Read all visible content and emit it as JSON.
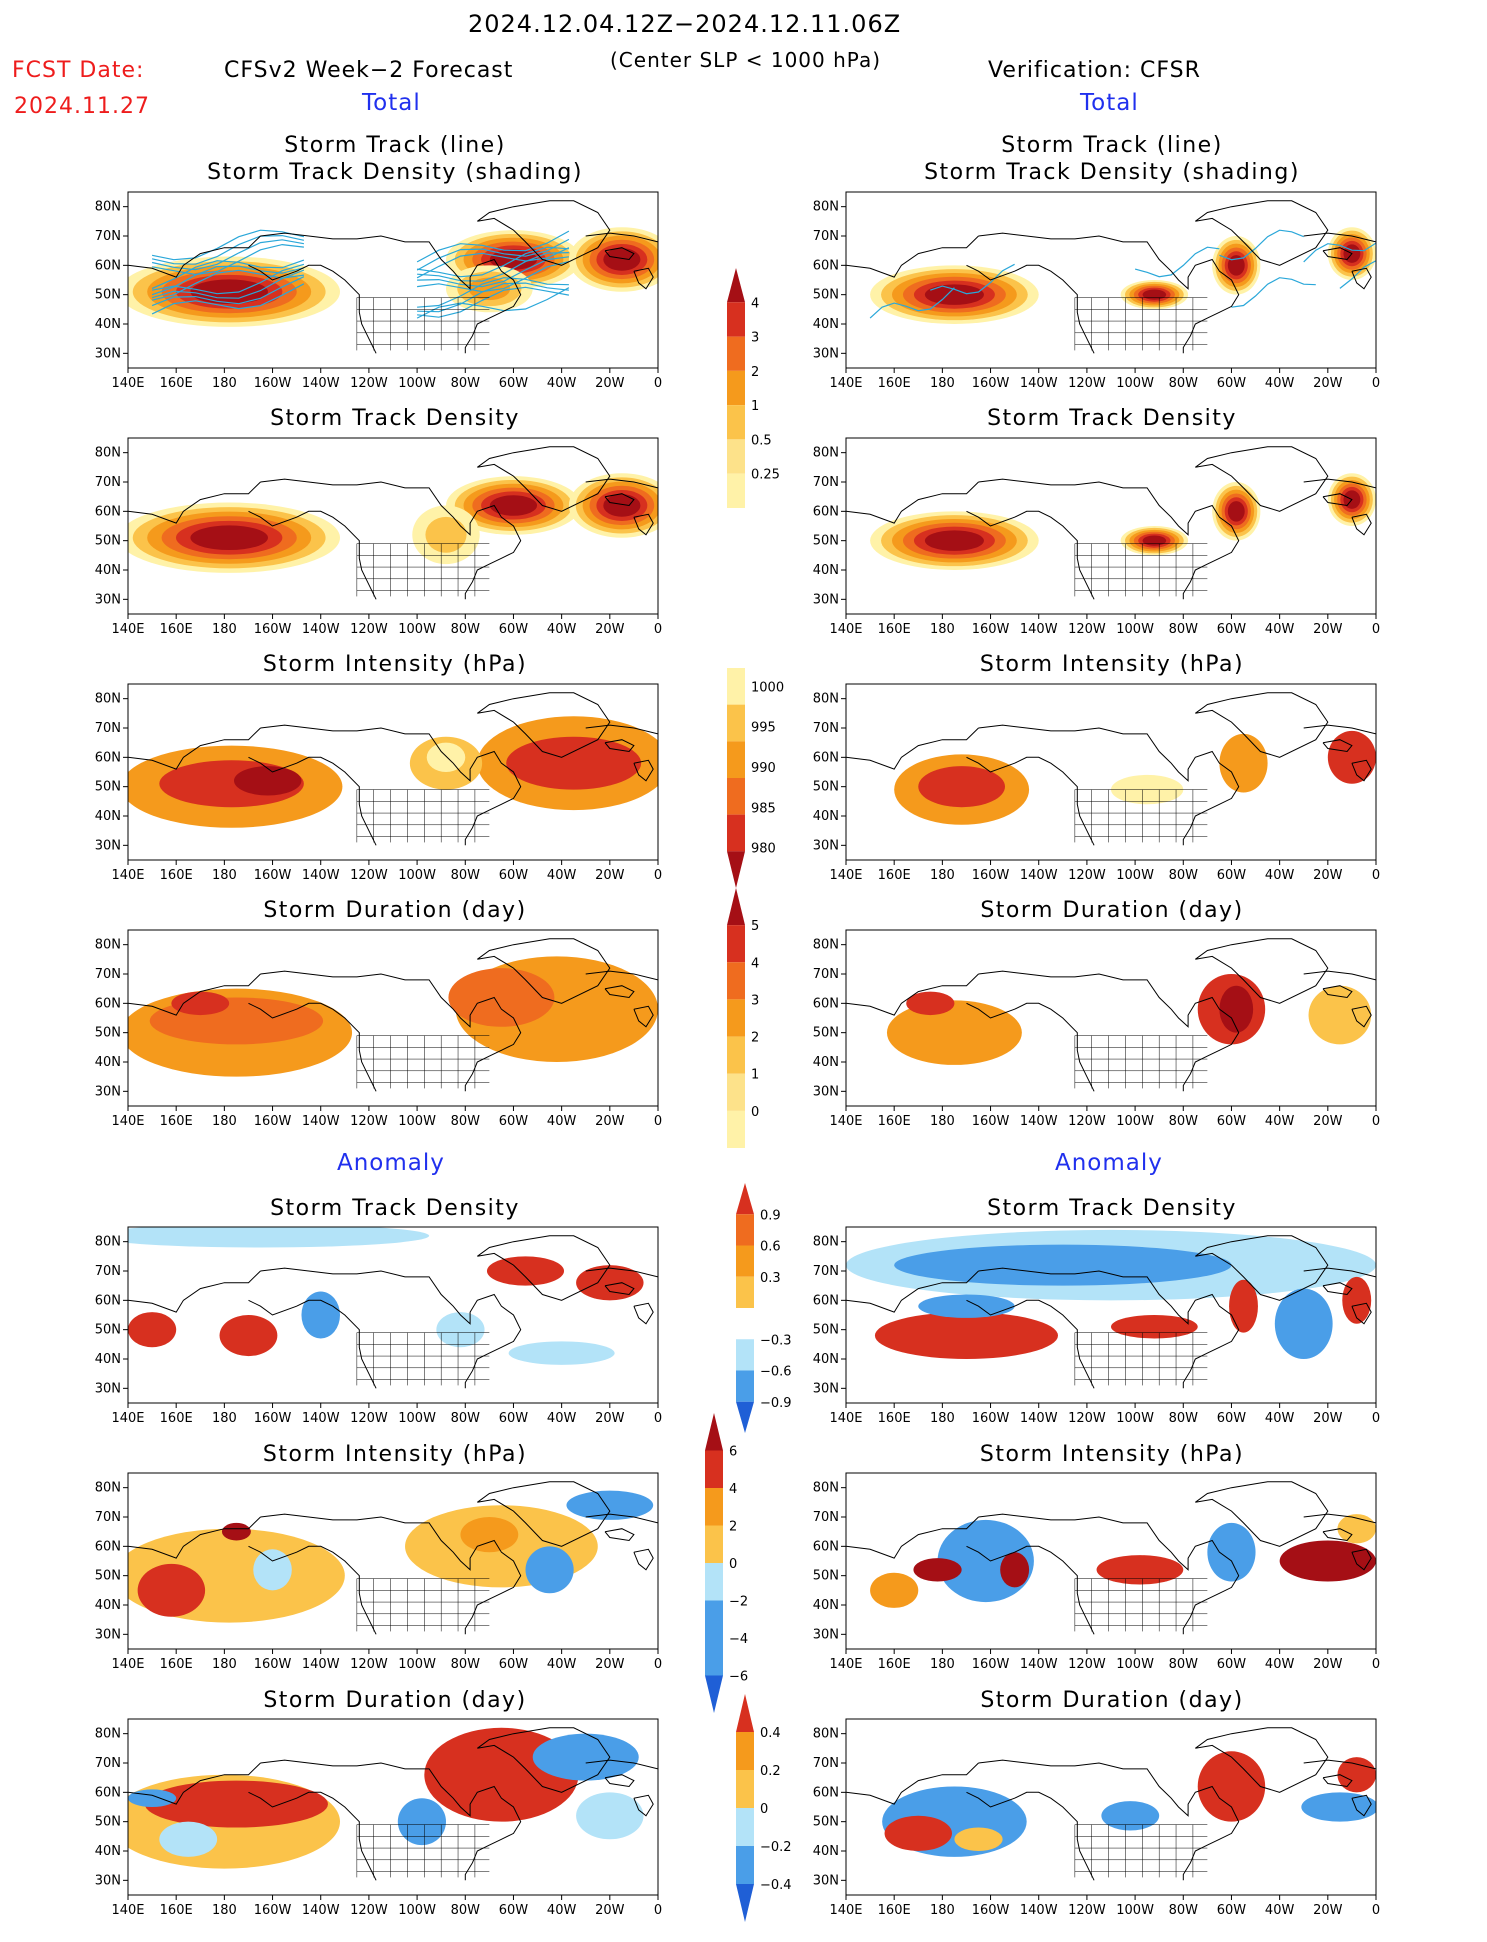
{
  "header": {
    "date_range": "2024.12.04.12Z−2024.12.11.06Z",
    "subtitle": "(Center SLP < 1000 hPa)",
    "fcst_label": "FCST Date:",
    "fcst_date": "2024.11.27",
    "left_title": "CFSv2 Week−2 Forecast",
    "right_title": "Verification: CFSR",
    "total_label": "Total",
    "anomaly_label": "Anomaly"
  },
  "map_axes": {
    "lat_ticks": [
      "80N",
      "70N",
      "60N",
      "50N",
      "40N",
      "30N"
    ],
    "lon_ticks": [
      "140E",
      "160E",
      "180",
      "160W",
      "140W",
      "120W",
      "100W",
      "80W",
      "60W",
      "40W",
      "20W",
      "0"
    ]
  },
  "panels": {
    "row1": "Storm Track (line)",
    "row1b": "Storm Track Density (shading)",
    "row2": "Storm Track Density",
    "row3": "Storm Intensity (hPa)",
    "row4": "Storm Duration (day)",
    "row5": "Storm Track Density",
    "row6": "Storm Intensity (hPa)",
    "row7": "Storm Duration (day)"
  },
  "colorbars": {
    "density": [
      "4",
      "3",
      "2",
      "1",
      "0.5",
      "0.25"
    ],
    "intensity": [
      "1000",
      "995",
      "990",
      "985",
      "980"
    ],
    "duration": [
      "5",
      "4",
      "3",
      "2",
      "1",
      "0"
    ],
    "density_anom": [
      "0.9",
      "0.6",
      "0.3",
      "−0.3",
      "−0.6",
      "−0.9"
    ],
    "intensity_anom": [
      "6",
      "4",
      "2",
      "0",
      "−2",
      "−4",
      "−6"
    ],
    "duration_anom": [
      "0.4",
      "0.2",
      "0",
      "−0.2",
      "−0.4"
    ]
  },
  "colors": {
    "dark_red": "#a50f15",
    "red": "#d7301f",
    "orange_red": "#ef6c1f",
    "orange": "#f59a1c",
    "light_orange": "#fbc34a",
    "pale_yellow": "#fff2a8",
    "light_blue": "#b3e3f8",
    "mid_blue": "#4a9ee8",
    "blue": "#1f5fd6",
    "track_line": "#2aa7d9"
  }
}
